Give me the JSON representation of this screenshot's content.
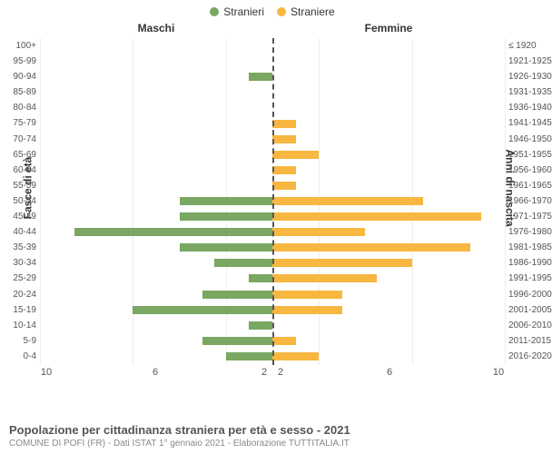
{
  "legend": {
    "male": {
      "label": "Stranieri",
      "color": "#7aa762"
    },
    "female": {
      "label": "Straniere",
      "color": "#f7b740"
    }
  },
  "columns": {
    "left": "Maschi",
    "right": "Femmine"
  },
  "axes": {
    "left_title": "Fasce di età",
    "right_title": "Anni di nascita",
    "x_max": 10,
    "x_ticks_left": [
      "10",
      "6",
      "2"
    ],
    "x_ticks_right": [
      "2",
      "6",
      "10"
    ]
  },
  "colors": {
    "male_bar": "#7aa762",
    "female_bar": "#f7b740",
    "grid": "#eeeeee",
    "centerline": "#555555",
    "bg": "#ffffff"
  },
  "rows": [
    {
      "age": "100+",
      "birth": "≤ 1920",
      "m": 0,
      "f": 0
    },
    {
      "age": "95-99",
      "birth": "1921-1925",
      "m": 0,
      "f": 0
    },
    {
      "age": "90-94",
      "birth": "1926-1930",
      "m": 1,
      "f": 0
    },
    {
      "age": "85-89",
      "birth": "1931-1935",
      "m": 0,
      "f": 0
    },
    {
      "age": "80-84",
      "birth": "1936-1940",
      "m": 0,
      "f": 0
    },
    {
      "age": "75-79",
      "birth": "1941-1945",
      "m": 0,
      "f": 1
    },
    {
      "age": "70-74",
      "birth": "1946-1950",
      "m": 0,
      "f": 1
    },
    {
      "age": "65-69",
      "birth": "1951-1955",
      "m": 0,
      "f": 2
    },
    {
      "age": "60-64",
      "birth": "1956-1960",
      "m": 0,
      "f": 1
    },
    {
      "age": "55-59",
      "birth": "1961-1965",
      "m": 0,
      "f": 1
    },
    {
      "age": "50-54",
      "birth": "1966-1970",
      "m": 4,
      "f": 6.5
    },
    {
      "age": "45-49",
      "birth": "1971-1975",
      "m": 4,
      "f": 9
    },
    {
      "age": "40-44",
      "birth": "1976-1980",
      "m": 8.5,
      "f": 4
    },
    {
      "age": "35-39",
      "birth": "1981-1985",
      "m": 4,
      "f": 8.5
    },
    {
      "age": "30-34",
      "birth": "1986-1990",
      "m": 2.5,
      "f": 6
    },
    {
      "age": "25-29",
      "birth": "1991-1995",
      "m": 1,
      "f": 4.5
    },
    {
      "age": "20-24",
      "birth": "1996-2000",
      "m": 3,
      "f": 3
    },
    {
      "age": "15-19",
      "birth": "2001-2005",
      "m": 6,
      "f": 3
    },
    {
      "age": "10-14",
      "birth": "2006-2010",
      "m": 1,
      "f": 0
    },
    {
      "age": "5-9",
      "birth": "2011-2015",
      "m": 3,
      "f": 1
    },
    {
      "age": "0-4",
      "birth": "2016-2020",
      "m": 2,
      "f": 2
    }
  ],
  "footer": {
    "title": "Popolazione per cittadinanza straniera per età e sesso - 2021",
    "subtitle": "COMUNE DI POFI (FR) - Dati ISTAT 1° gennaio 2021 - Elaborazione TUTTITALIA.IT"
  }
}
